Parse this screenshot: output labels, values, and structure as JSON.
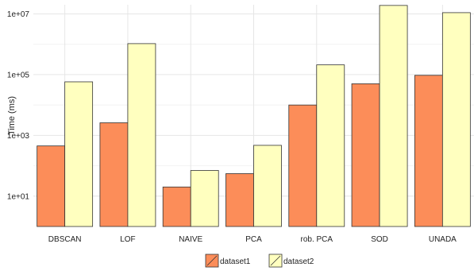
{
  "chart_data": {
    "type": "bar",
    "title": "",
    "xlabel": "",
    "ylabel": "Time (ms)",
    "yscale": "log10",
    "ylim": [
      1,
      20000000
    ],
    "yticks": [
      {
        "value": 10,
        "label": "1e+01"
      },
      {
        "value": 1000,
        "label": "1e+03"
      },
      {
        "value": 100000,
        "label": "1e+05"
      },
      {
        "value": 10000000,
        "label": "1e+07"
      }
    ],
    "grid": true,
    "legend_position": "bottom",
    "categories": [
      "DBSCAN",
      "LOF",
      "NAIVE",
      "PCA",
      "rob. PCA",
      "SOD",
      "UNADA"
    ],
    "series": [
      {
        "name": "dataset1",
        "color": "#fc8d59",
        "values": [
          450,
          2600,
          20,
          55,
          10000,
          50000,
          95000
        ]
      },
      {
        "name": "dataset2",
        "color": "#ffffbf",
        "values": [
          58000,
          1050000,
          70,
          470,
          210000,
          19000000,
          11000000
        ]
      }
    ]
  }
}
